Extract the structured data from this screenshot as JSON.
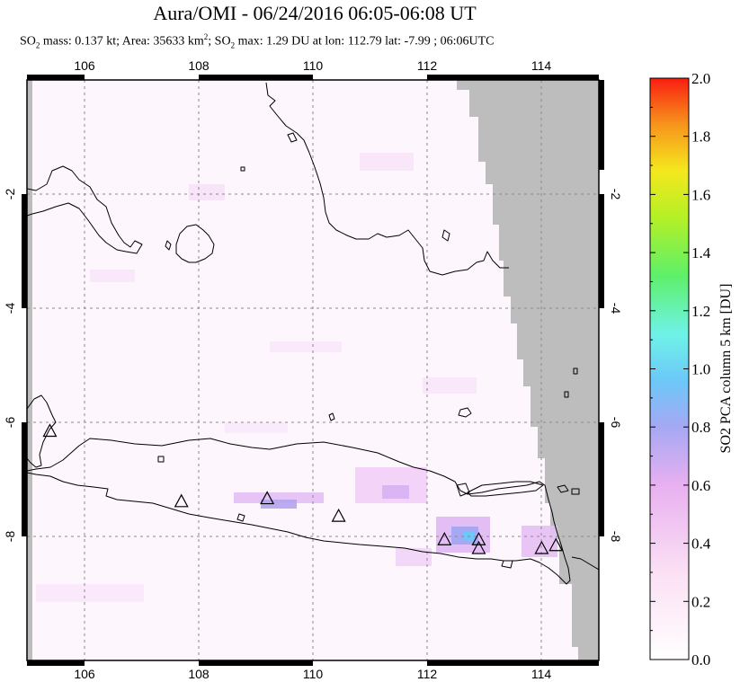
{
  "header": {
    "title": "Aura/OMI - 06/24/2016 06:05-06:08 UT",
    "stats": {
      "mass_prefix": "SO",
      "mass_sub": "2",
      "mass_text": " mass: 0.137 kt; Area: 35633 km",
      "area_sup": "2",
      "max_prefix": "; SO",
      "max_sub": "2",
      "max_text": " max: 1.29 DU at lon: 112.79 lat: -7.99 ; 06:06UTC"
    }
  },
  "map": {
    "lon_range": [
      105,
      115
    ],
    "lat_range": [
      -10.0,
      -0.1
    ],
    "lon_ticks": [
      "106",
      "108",
      "110",
      "112",
      "114"
    ],
    "lat_ticks_left": [
      "-2",
      "-4",
      "-6",
      "-8"
    ],
    "lat_ticks_right": [
      "-2",
      "-4",
      "-6",
      "-8"
    ],
    "colors": {
      "missing_data": "#bdbdbd",
      "coast": "#000000",
      "grid": "#8a8a8a"
    },
    "volcano_marker": "triangle-icon",
    "volcanoes": [
      {
        "lon": 105.4,
        "lat": -6.1
      },
      {
        "lon": 107.7,
        "lat": -7.3
      },
      {
        "lon": 109.2,
        "lat": -7.25
      },
      {
        "lon": 110.45,
        "lat": -7.55
      },
      {
        "lon": 112.3,
        "lat": -7.95
      },
      {
        "lon": 112.9,
        "lat": -7.95
      },
      {
        "lon": 112.9,
        "lat": -8.1
      },
      {
        "lon": 114.0,
        "lat": -8.1
      },
      {
        "lon": 114.25,
        "lat": -8.05
      }
    ],
    "so2_max": {
      "lon": 112.79,
      "lat": -7.99,
      "value": 1.29
    }
  },
  "colorbar": {
    "label": "SO2 PCA column 5 km [DU]",
    "tick_labels": [
      "0.0",
      "0.2",
      "0.4",
      "0.6",
      "0.8",
      "1.0",
      "1.2",
      "1.4",
      "1.6",
      "1.8",
      "2.0"
    ],
    "min": 0.0,
    "max": 2.0
  }
}
